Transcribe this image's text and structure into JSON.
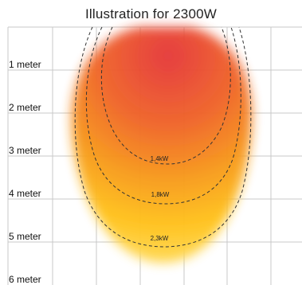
{
  "title": "Illustration for 2300W",
  "distance_labels": [
    "1 meter",
    "2 meter",
    "3 meter",
    "4 meter",
    "5 meter",
    "6 meter"
  ],
  "power_labels": [
    "1,4kW",
    "1,8kW",
    "2,3kW"
  ],
  "colors": {
    "hot_center": "#e5393b",
    "mid_orange": "#f57d1f",
    "outer_yellow": "#ffc21a",
    "grid": "#c8c8c8",
    "dashed_line": "#333333"
  }
}
